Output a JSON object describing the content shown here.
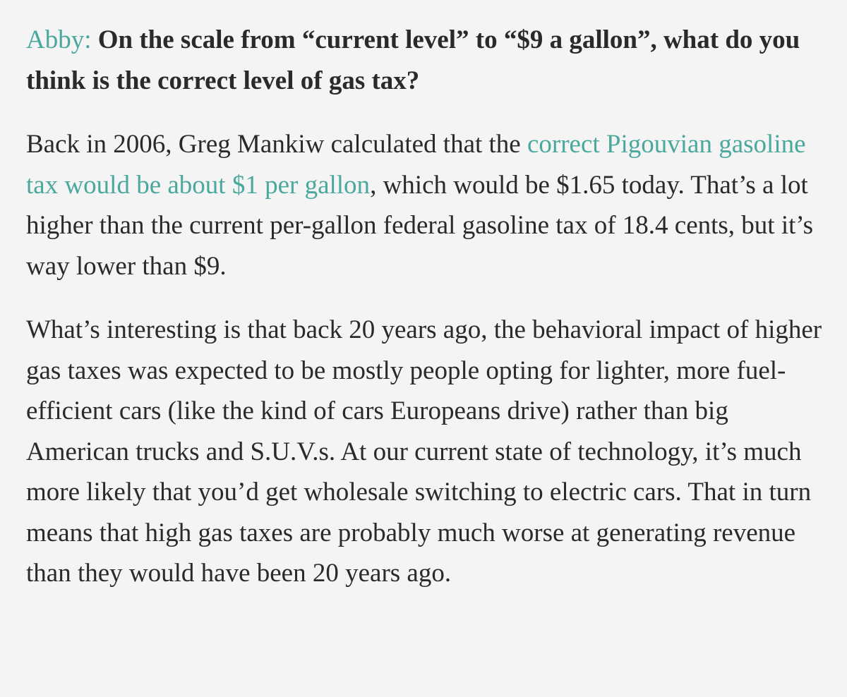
{
  "question": {
    "speaker": "Abby:",
    "text": " On the scale from “current level” to “$9 a gallon”, what do you think is the correct level of gas tax?"
  },
  "paragraph1": {
    "before_link": "Back in 2006, Greg Mankiw calculated that the ",
    "link_text": "correct Pigouvian gasoline tax would be about $1 per gallon",
    "after_link": ", which would be $1.65 today. That’s a lot higher than the current per-gallon federal gasoline tax of 18.4 cents, but it’s way lower than $9."
  },
  "paragraph2": {
    "text": "What’s interesting is that back 20 years ago, the behavioral impact of higher gas taxes was expected to be mostly people opting for lighter, more fuel-efficient cars (like the kind of cars Europeans drive) rather than big American trucks and S.U.V.s. At our current state of technology, it’s much more likely that you’d get wholesale switching to electric cars. That in turn means that high gas taxes are probably much worse at generating revenue than they would have been 20 years ago."
  },
  "colors": {
    "accent": "#4aa89c",
    "text": "#2a2a2a",
    "background": "#f4f4f4"
  }
}
